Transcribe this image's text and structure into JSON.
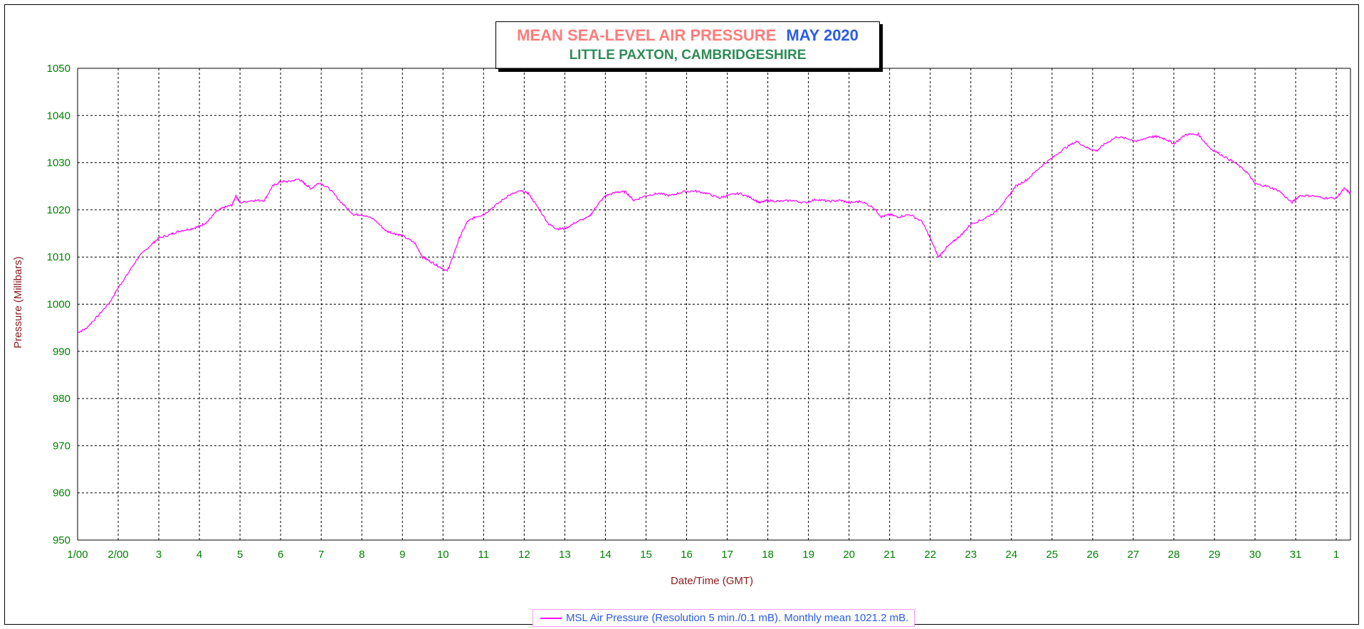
{
  "chart_data": {
    "type": "line",
    "title": "MEAN SEA-LEVEL AIR PRESSURE",
    "period": "MAY 2020",
    "subtitle": "LITTLE PAXTON, CAMBRIDGESHIRE",
    "ylabel": "Pressure (Millibars)",
    "xlabel": "Date/Time (GMT)",
    "ylim": [
      950,
      1050
    ],
    "yticks": [
      950,
      960,
      970,
      980,
      990,
      1000,
      1010,
      1020,
      1030,
      1040,
      1050
    ],
    "xlim": [
      1,
      32.35
    ],
    "xtick_labels": [
      "1/00",
      "2/00",
      "3",
      "4",
      "5",
      "6",
      "7",
      "8",
      "9",
      "10",
      "11",
      "12",
      "13",
      "14",
      "15",
      "16",
      "17",
      "18",
      "19",
      "20",
      "21",
      "22",
      "23",
      "24",
      "25",
      "26",
      "27",
      "28",
      "29",
      "30",
      "31",
      "1"
    ],
    "grid": true,
    "legend_position": "bottom-center",
    "legend_text": "MSL Air Pressure (Resolution 5 min./0.1 mB). Monthly mean 1021.2 mB.",
    "series": [
      {
        "name": "MSL Air Pressure (Resolution 5 min./0.1 mB). Monthly mean 1021.2 mB.",
        "color": "#ff00ff",
        "x": [
          1.0,
          1.2,
          1.5,
          1.8,
          2.0,
          2.2,
          2.5,
          2.8,
          3.0,
          3.3,
          3.5,
          3.8,
          4.0,
          4.2,
          4.4,
          4.6,
          4.8,
          4.9,
          5.0,
          5.3,
          5.6,
          5.8,
          6.0,
          6.2,
          6.45,
          6.6,
          6.75,
          6.95,
          7.2,
          7.5,
          7.8,
          8.0,
          8.3,
          8.6,
          8.8,
          9.0,
          9.3,
          9.5,
          9.7,
          9.9,
          10.1,
          10.2,
          10.4,
          10.6,
          10.8,
          11.0,
          11.3,
          11.6,
          11.9,
          12.1,
          12.3,
          12.6,
          12.8,
          13.0,
          13.3,
          13.6,
          13.8,
          14.0,
          14.3,
          14.5,
          14.7,
          15.0,
          15.3,
          15.6,
          15.9,
          16.2,
          16.5,
          16.8,
          17.0,
          17.3,
          17.6,
          17.8,
          18.0,
          18.3,
          18.6,
          18.9,
          19.2,
          19.5,
          19.8,
          20.0,
          20.3,
          20.6,
          20.8,
          21.0,
          21.2,
          21.5,
          21.8,
          22.0,
          22.2,
          22.4,
          22.6,
          22.8,
          23.0,
          23.3,
          23.6,
          23.9,
          24.1,
          24.4,
          24.7,
          25.0,
          25.3,
          25.6,
          25.9,
          26.1,
          26.3,
          26.6,
          26.9,
          27.1,
          27.4,
          27.6,
          27.8,
          28.0,
          28.3,
          28.6,
          28.9,
          29.2,
          29.5,
          29.8,
          30.0,
          30.3,
          30.6,
          30.9,
          31.1,
          31.4,
          31.7,
          32.0,
          32.2,
          32.35
        ],
        "values": [
          994.0,
          994.8,
          997.5,
          1000.5,
          1003.5,
          1006.0,
          1010.0,
          1012.5,
          1014.0,
          1014.8,
          1015.5,
          1016.0,
          1016.5,
          1017.5,
          1019.5,
          1020.5,
          1021.0,
          1023.0,
          1021.5,
          1022.0,
          1022.0,
          1025.0,
          1026.0,
          1026.0,
          1026.5,
          1025.5,
          1024.5,
          1025.8,
          1024.5,
          1021.5,
          1019.0,
          1019.0,
          1018.0,
          1015.5,
          1015.0,
          1014.5,
          1013.0,
          1010.0,
          1009.0,
          1008.0,
          1007.0,
          1009.0,
          1014.0,
          1017.5,
          1018.5,
          1019.0,
          1021.0,
          1023.0,
          1024.0,
          1023.5,
          1021.0,
          1017.0,
          1016.0,
          1016.0,
          1017.5,
          1018.5,
          1021.0,
          1023.0,
          1023.8,
          1023.8,
          1022.0,
          1023.0,
          1023.5,
          1023.0,
          1023.8,
          1024.0,
          1023.5,
          1022.5,
          1023.0,
          1023.5,
          1022.5,
          1021.5,
          1022.0,
          1021.8,
          1022.0,
          1021.5,
          1022.2,
          1021.8,
          1022.0,
          1021.5,
          1021.8,
          1020.5,
          1018.5,
          1019.0,
          1018.5,
          1019.0,
          1017.5,
          1014.0,
          1010.0,
          1012.0,
          1013.5,
          1015.0,
          1017.0,
          1018.0,
          1019.5,
          1022.5,
          1025.0,
          1026.5,
          1029.0,
          1031.0,
          1033.0,
          1034.5,
          1033.0,
          1032.5,
          1034.0,
          1035.5,
          1035.0,
          1034.5,
          1035.5,
          1035.5,
          1035.0,
          1034.0,
          1036.0,
          1036.0,
          1033.0,
          1031.5,
          1030.0,
          1028.0,
          1025.5,
          1025.0,
          1024.0,
          1021.5,
          1023.0,
          1023.0,
          1022.5,
          1022.5,
          1024.5,
          1023.5
        ]
      }
    ]
  }
}
